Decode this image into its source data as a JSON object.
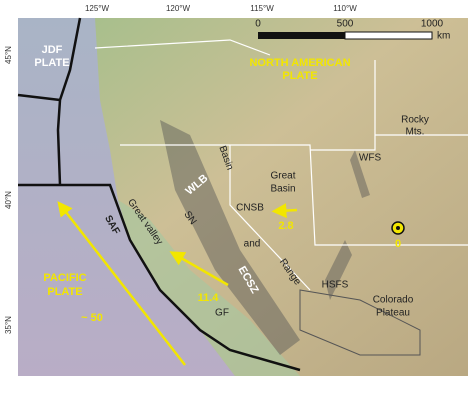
{
  "axes": {
    "longitude": [
      "125°W",
      "120°W",
      "115°W",
      "110°W"
    ],
    "latitude": [
      "45°N",
      "40°N",
      "35°N"
    ]
  },
  "scale_bar": {
    "ticks": [
      "0",
      "500",
      "1000"
    ],
    "unit": "km"
  },
  "plates": {
    "juan_de_fuca": [
      "JDF",
      "PLATE"
    ],
    "north_american": [
      "NORTH AMERICAN",
      "PLATE"
    ],
    "pacific": [
      "PACIFIC",
      "PLATE"
    ]
  },
  "velocities": {
    "pacific": "~ 50",
    "sierra_nevada": "11.4",
    "basin_and_range": "2.8",
    "reference": "0"
  },
  "regions": {
    "rocky_mts": [
      "Rocky",
      "Mts."
    ],
    "great_basin": [
      "Great",
      "Basin"
    ],
    "basin_and_range": [
      "Basin",
      "and",
      "Range"
    ],
    "colorado_plateau": [
      "Colorado",
      "Plateau"
    ],
    "great_valley": "Great valley"
  },
  "faults": {
    "wfs": "WFS",
    "cnsb": "CNSB",
    "wlb": "WLB",
    "sn": "SN",
    "ecsz": "ECSZ",
    "gf": "GF",
    "saf": "SAF",
    "hsfs": "HSFS"
  }
}
